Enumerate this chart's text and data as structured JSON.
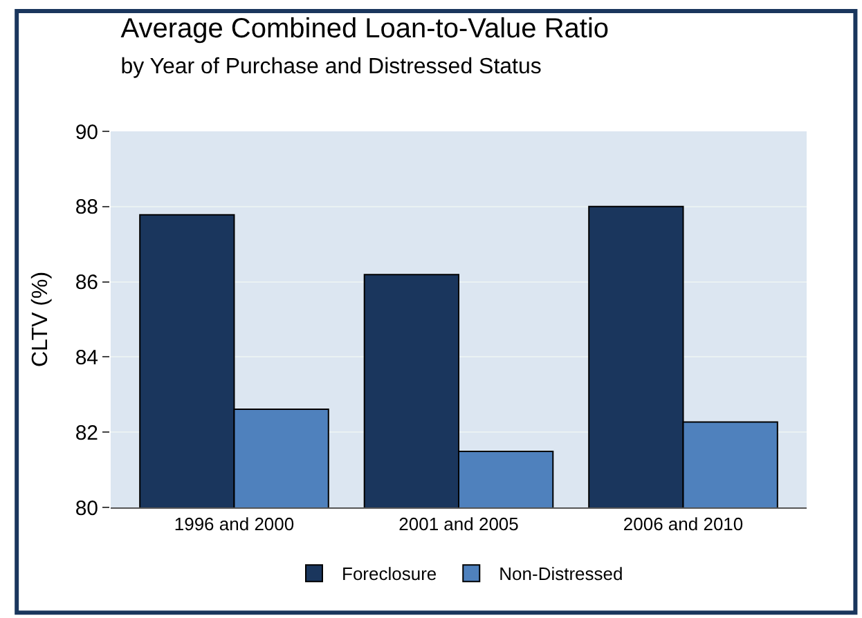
{
  "chart_data": {
    "type": "bar",
    "title": "Average Combined Loan-to-Value Ratio",
    "subtitle": "by Year of Purchase and Distressed Status",
    "ylabel": "CLTV (%)",
    "categories": [
      "1996 and 2000",
      "2001 and 2005",
      "2006 and 2010"
    ],
    "series": [
      {
        "name": "Foreclosure",
        "color": "#1a365d",
        "values": [
          87.78,
          86.19,
          88.0
        ]
      },
      {
        "name": "Non-Distressed",
        "color": "#4f81bd",
        "values": [
          82.61,
          81.49,
          82.27
        ]
      }
    ],
    "ylim": [
      80,
      90
    ],
    "yticks": [
      80,
      82,
      84,
      86,
      88,
      90
    ],
    "grid": "y",
    "legend": "bottom"
  }
}
